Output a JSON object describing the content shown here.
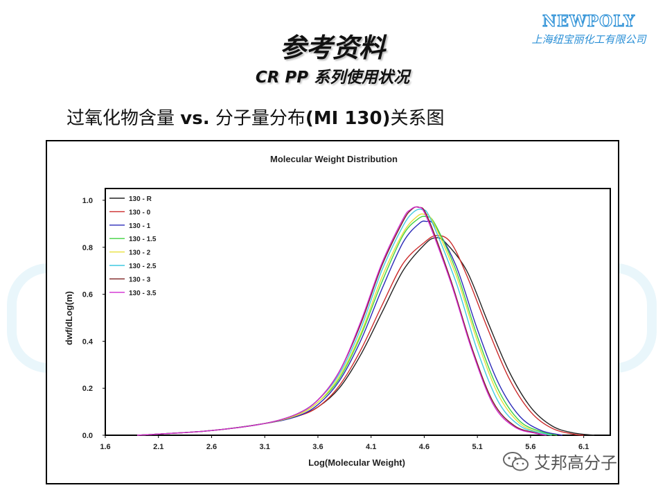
{
  "slide": {
    "title": "参考资料",
    "subtitle": "CR PP 系列使用状况",
    "heading_pre": "过氧化物含量 ",
    "heading_vs": "vs.",
    "heading_mid": " 分子量分布",
    "heading_mi": "(MI 130)",
    "heading_post": "关系图"
  },
  "logo": {
    "en": "NEWPOLY",
    "cn": "上海纽宝丽化工有限公司"
  },
  "watermark": {
    "text": "艾邦高分子",
    "icon": "wechat-icon"
  },
  "colors": {
    "logo": "#2a8fd6"
  },
  "chart_data": {
    "type": "line",
    "title": "Molecular Weight Distribution",
    "xlabel": "Log(Molecular Weight)",
    "ylabel": "dwf/dLog(m)",
    "xlim": [
      1.6,
      6.35
    ],
    "ylim": [
      0,
      1.05
    ],
    "xticks": [
      "1.6",
      "2.1",
      "2.6",
      "3.1",
      "3.6",
      "4.1",
      "4.6",
      "5.1",
      "5.6",
      "6.1"
    ],
    "yticks": [
      "0.0",
      "0.2",
      "0.4",
      "0.6",
      "0.8",
      "1.0"
    ],
    "legend_position": "top-left",
    "series": [
      {
        "name": "130 - R",
        "color": "#222222",
        "x": [
          1.9,
          2.1,
          2.6,
          3.1,
          3.4,
          3.6,
          3.8,
          4.0,
          4.2,
          4.4,
          4.6,
          4.7,
          4.8,
          5.0,
          5.2,
          5.4,
          5.6,
          5.8,
          6.0,
          6.2
        ],
        "y": [
          0.0,
          0.005,
          0.02,
          0.05,
          0.08,
          0.12,
          0.2,
          0.34,
          0.52,
          0.7,
          0.81,
          0.84,
          0.82,
          0.7,
          0.48,
          0.27,
          0.12,
          0.04,
          0.01,
          0.0
        ]
      },
      {
        "name": "130 - 0",
        "color": "#cc2a2a",
        "x": [
          1.9,
          2.1,
          2.6,
          3.1,
          3.4,
          3.6,
          3.8,
          4.0,
          4.2,
          4.4,
          4.6,
          4.72,
          4.85,
          5.0,
          5.2,
          5.4,
          5.6,
          5.8,
          6.0,
          6.1
        ],
        "y": [
          0.0,
          0.005,
          0.02,
          0.05,
          0.08,
          0.12,
          0.21,
          0.36,
          0.55,
          0.73,
          0.82,
          0.85,
          0.82,
          0.68,
          0.45,
          0.24,
          0.1,
          0.03,
          0.005,
          0.0
        ]
      },
      {
        "name": "130 - 1",
        "color": "#2a2ab8",
        "x": [
          1.9,
          2.1,
          2.6,
          3.1,
          3.4,
          3.6,
          3.8,
          4.0,
          4.2,
          4.4,
          4.55,
          4.62,
          4.7,
          4.9,
          5.1,
          5.3,
          5.5,
          5.7,
          5.9
        ],
        "y": [
          0.0,
          0.005,
          0.02,
          0.05,
          0.08,
          0.13,
          0.23,
          0.4,
          0.62,
          0.82,
          0.9,
          0.91,
          0.89,
          0.72,
          0.45,
          0.22,
          0.08,
          0.02,
          0.0
        ]
      },
      {
        "name": "130 - 1.5",
        "color": "#3fd23f",
        "x": [
          1.9,
          2.1,
          2.6,
          3.1,
          3.4,
          3.6,
          3.8,
          4.0,
          4.2,
          4.4,
          4.54,
          4.62,
          4.7,
          4.9,
          5.1,
          5.3,
          5.5,
          5.7,
          5.85
        ],
        "y": [
          0.0,
          0.005,
          0.02,
          0.05,
          0.085,
          0.14,
          0.24,
          0.42,
          0.65,
          0.85,
          0.92,
          0.93,
          0.9,
          0.7,
          0.42,
          0.19,
          0.06,
          0.015,
          0.0
        ]
      },
      {
        "name": "130 - 2",
        "color": "#e8e03a",
        "x": [
          1.9,
          2.1,
          2.6,
          3.1,
          3.4,
          3.6,
          3.8,
          4.0,
          4.2,
          4.4,
          4.53,
          4.6,
          4.68,
          4.9,
          5.1,
          5.3,
          5.5,
          5.7,
          5.8
        ],
        "y": [
          0.0,
          0.005,
          0.02,
          0.05,
          0.085,
          0.14,
          0.25,
          0.43,
          0.67,
          0.86,
          0.93,
          0.94,
          0.91,
          0.68,
          0.4,
          0.17,
          0.05,
          0.01,
          0.0
        ]
      },
      {
        "name": "130 - 2.5",
        "color": "#3fc9e0",
        "x": [
          1.9,
          2.1,
          2.6,
          3.1,
          3.4,
          3.6,
          3.8,
          4.0,
          4.2,
          4.4,
          4.5,
          4.58,
          4.66,
          4.9,
          5.1,
          5.3,
          5.5,
          5.7,
          5.8
        ],
        "y": [
          0.0,
          0.005,
          0.02,
          0.05,
          0.09,
          0.15,
          0.26,
          0.45,
          0.7,
          0.89,
          0.95,
          0.96,
          0.92,
          0.65,
          0.36,
          0.14,
          0.04,
          0.01,
          0.0
        ]
      },
      {
        "name": "130 - 3",
        "color": "#7a1f1f",
        "x": [
          1.9,
          2.1,
          2.6,
          3.1,
          3.4,
          3.6,
          3.8,
          4.0,
          4.2,
          4.4,
          4.48,
          4.55,
          4.63,
          4.85,
          5.05,
          5.25,
          5.45,
          5.65,
          5.75
        ],
        "y": [
          0.0,
          0.005,
          0.02,
          0.05,
          0.09,
          0.15,
          0.27,
          0.47,
          0.72,
          0.91,
          0.96,
          0.97,
          0.93,
          0.66,
          0.37,
          0.14,
          0.04,
          0.01,
          0.0
        ]
      },
      {
        "name": "130 - 3.5",
        "color": "#d02ad0",
        "x": [
          1.9,
          2.1,
          2.6,
          3.1,
          3.4,
          3.6,
          3.8,
          4.0,
          4.2,
          4.4,
          4.47,
          4.54,
          4.62,
          4.85,
          5.05,
          5.25,
          5.45,
          5.65,
          5.75
        ],
        "y": [
          0.0,
          0.005,
          0.02,
          0.05,
          0.09,
          0.15,
          0.27,
          0.48,
          0.73,
          0.92,
          0.96,
          0.97,
          0.93,
          0.65,
          0.36,
          0.13,
          0.035,
          0.008,
          0.0
        ]
      }
    ]
  }
}
